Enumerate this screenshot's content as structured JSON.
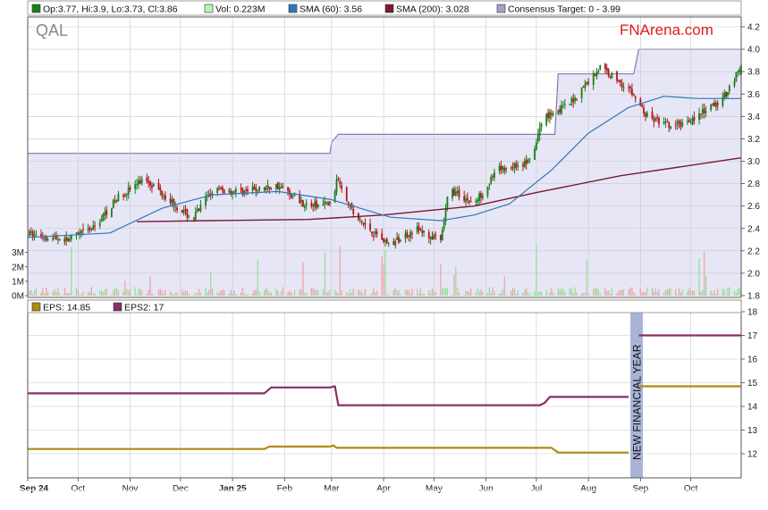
{
  "ticker": "QAL",
  "brand": "FNArena.com",
  "colors": {
    "candle_up": "#1a7f1a",
    "candle_down": "#b01818",
    "sma60": "#2f78b8",
    "sma200": "#7a1a2e",
    "consensus_line": "#7a7ab0",
    "consensus_fill": "#e6e6f6",
    "eps": "#b08a10",
    "eps2": "#8a2e66",
    "vol_up": "#8ee08e",
    "vol_down": "#f0a0a0",
    "new_fy_band": "#a9b3d8",
    "brand": "#e11b1b",
    "grid": "#c8c8c8"
  },
  "top_legend": [
    {
      "label": "Op:3.77, Hi:3.9, Lo:3.73, Cl:3.86",
      "swatch": "#1a7f1a"
    },
    {
      "label": "Vol: 0.223M",
      "swatch": "#b8f0b8"
    },
    {
      "label": "SMA (60): 3.56",
      "swatch": "#2f78b8"
    },
    {
      "label": "SMA (200): 3.028",
      "swatch": "#7a1a2e"
    },
    {
      "label": "Consensus Target: 0 - 3.99",
      "swatch": "#a0a0c8"
    }
  ],
  "bottom_legend": [
    {
      "label": "EPS: 14.85",
      "swatch": "#b08a10"
    },
    {
      "label": "EPS2: 17",
      "swatch": "#8a2e66"
    }
  ],
  "annotation": "NEW FINANCIAL YEAR",
  "x_axis": {
    "labels": [
      "Sep 24",
      "Oct",
      "Nov",
      "Dec",
      "Jan 25",
      "Feb",
      "Mar",
      "Apr",
      "May",
      "Jun",
      "Jul",
      "Aug",
      "Sep",
      "Oct"
    ],
    "bold": [
      "Sep 24",
      "Jan 25"
    ]
  },
  "chart_data": [
    {
      "type": "candlestick",
      "title": "QAL",
      "x_start": "2024-09-01",
      "x_end": "2025-10-31",
      "ylim": [
        1.8,
        4.2
      ],
      "yticks": [
        "1.8",
        "2.0",
        "2.2",
        "2.4",
        "2.6",
        "2.8",
        "3.0",
        "3.2",
        "3.4",
        "3.6",
        "3.8",
        "4.0",
        "4.2"
      ],
      "volume_ticks": [
        "0M",
        "1M",
        "2M",
        "3M"
      ],
      "volume_max_M": 3.6,
      "grid": true,
      "price_anchors": [
        [
          "2024-09-01",
          2.35
        ],
        [
          "2024-09-25",
          2.3
        ],
        [
          "2024-10-10",
          2.4
        ],
        [
          "2024-10-25",
          2.68
        ],
        [
          "2024-11-10",
          2.85
        ],
        [
          "2024-11-25",
          2.65
        ],
        [
          "2024-12-08",
          2.48
        ],
        [
          "2024-12-20",
          2.74
        ],
        [
          "2025-01-10",
          2.73
        ],
        [
          "2025-01-28",
          2.78
        ],
        [
          "2025-02-15",
          2.6
        ],
        [
          "2025-02-28",
          2.62
        ],
        [
          "2025-03-05",
          2.85
        ],
        [
          "2025-03-15",
          2.5
        ],
        [
          "2025-04-05",
          2.25
        ],
        [
          "2025-04-20",
          2.4
        ],
        [
          "2025-05-05",
          2.28
        ],
        [
          "2025-05-10",
          2.75
        ],
        [
          "2025-05-25",
          2.62
        ],
        [
          "2025-06-08",
          2.92
        ],
        [
          "2025-06-28",
          3.0
        ],
        [
          "2025-07-05",
          3.4
        ],
        [
          "2025-07-20",
          3.5
        ],
        [
          "2025-08-08",
          3.84
        ],
        [
          "2025-08-25",
          3.65
        ],
        [
          "2025-09-05",
          3.4
        ],
        [
          "2025-09-20",
          3.3
        ],
        [
          "2025-10-05",
          3.4
        ],
        [
          "2025-10-20",
          3.55
        ],
        [
          "2025-10-31",
          3.86
        ]
      ],
      "sma60": [
        [
          "2024-09-01",
          2.32
        ],
        [
          "2024-10-20",
          2.36
        ],
        [
          "2024-11-20",
          2.58
        ],
        [
          "2024-12-20",
          2.7
        ],
        [
          "2025-01-28",
          2.73
        ],
        [
          "2025-02-28",
          2.66
        ],
        [
          "2025-04-05",
          2.5
        ],
        [
          "2025-05-05",
          2.47
        ],
        [
          "2025-05-25",
          2.52
        ],
        [
          "2025-06-15",
          2.62
        ],
        [
          "2025-07-10",
          2.92
        ],
        [
          "2025-08-01",
          3.25
        ],
        [
          "2025-08-25",
          3.48
        ],
        [
          "2025-09-15",
          3.58
        ],
        [
          "2025-10-05",
          3.56
        ],
        [
          "2025-10-31",
          3.56
        ]
      ],
      "sma200": [
        [
          "2024-11-05",
          2.46
        ],
        [
          "2024-12-20",
          2.47
        ],
        [
          "2025-02-15",
          2.48
        ],
        [
          "2025-04-01",
          2.52
        ],
        [
          "2025-05-25",
          2.6
        ],
        [
          "2025-07-01",
          2.72
        ],
        [
          "2025-08-20",
          2.87
        ],
        [
          "2025-10-31",
          3.03
        ]
      ],
      "consensus_target": [
        [
          "2024-09-01",
          3.07
        ],
        [
          "2025-02-28",
          3.07
        ],
        [
          "2025-03-01",
          3.17
        ],
        [
          "2025-03-05",
          3.24
        ],
        [
          "2025-07-12",
          3.24
        ],
        [
          "2025-07-14",
          3.78
        ],
        [
          "2025-08-28",
          3.78
        ],
        [
          "2025-08-31",
          4.0
        ],
        [
          "2025-10-31",
          4.0
        ]
      ],
      "last": {
        "open": 3.77,
        "high": 3.9,
        "low": 3.73,
        "close": 3.86,
        "volume_M": 0.223
      }
    },
    {
      "type": "line",
      "ylim": [
        11,
        18
      ],
      "yticks": [
        "12",
        "13",
        "14",
        "15",
        "16",
        "17",
        "18"
      ],
      "grid": true,
      "series": [
        {
          "name": "EPS",
          "points": [
            [
              "2024-09-01",
              12.2
            ],
            [
              "2025-01-20",
              12.2
            ],
            [
              "2025-01-23",
              12.3
            ],
            [
              "2025-02-28",
              12.3
            ],
            [
              "2025-03-02",
              12.35
            ],
            [
              "2025-03-04",
              12.25
            ],
            [
              "2025-07-10",
              12.25
            ],
            [
              "2025-07-14",
              12.05
            ],
            [
              "2025-08-25",
              12.05
            ]
          ]
        },
        {
          "name": "EPS",
          "points": [
            [
              "2025-08-31",
              14.85
            ],
            [
              "2025-10-31",
              14.85
            ]
          ]
        },
        {
          "name": "EPS2",
          "points": [
            [
              "2024-09-01",
              14.55
            ],
            [
              "2025-01-20",
              14.55
            ],
            [
              "2025-01-24",
              14.8
            ],
            [
              "2025-02-28",
              14.8
            ],
            [
              "2025-03-03",
              14.85
            ],
            [
              "2025-03-05",
              14.05
            ],
            [
              "2025-07-03",
              14.05
            ],
            [
              "2025-07-06",
              14.15
            ],
            [
              "2025-07-09",
              14.4
            ],
            [
              "2025-08-25",
              14.4
            ]
          ]
        },
        {
          "name": "EPS2",
          "points": [
            [
              "2025-08-31",
              17.0
            ],
            [
              "2025-10-31",
              17.0
            ]
          ]
        }
      ]
    }
  ]
}
